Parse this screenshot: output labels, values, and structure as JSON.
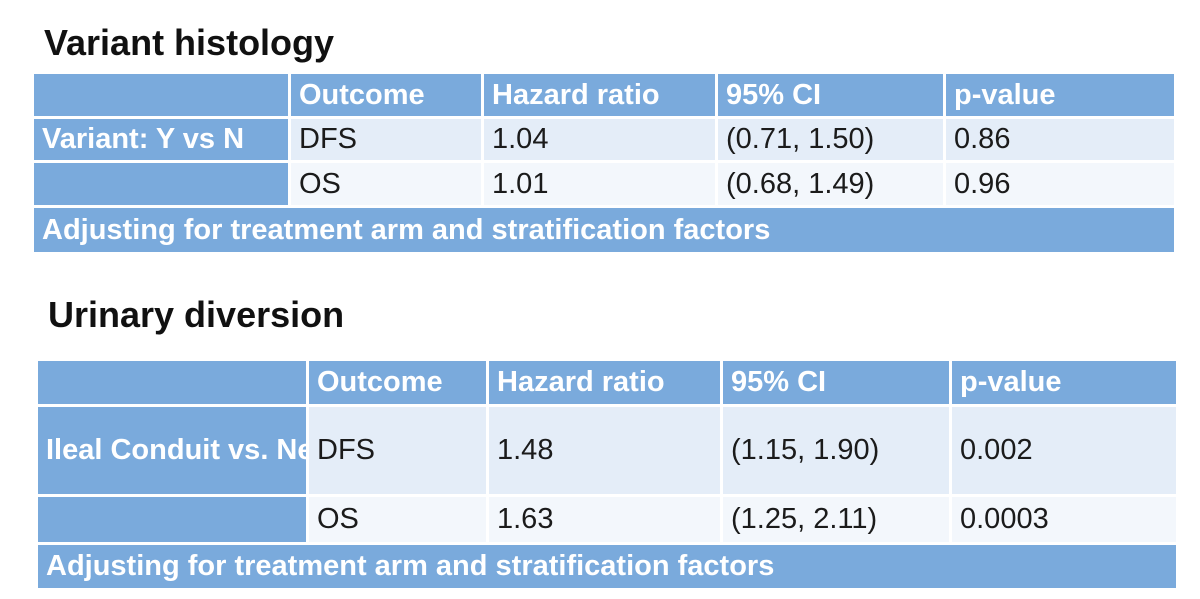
{
  "sections": [
    {
      "title": "Variant histology",
      "columns": [
        "",
        "Outcome",
        "Hazard ratio",
        "95% CI",
        "p-value"
      ],
      "group_label": "Variant:  Y vs N",
      "rows": [
        {
          "outcome": "DFS",
          "hazard_ratio": "1.04",
          "ci": "(0.71, 1.50)",
          "p_value": "0.86"
        },
        {
          "outcome": "OS",
          "hazard_ratio": "1.01",
          "ci": "(0.68, 1.49)",
          "p_value": "0.96"
        }
      ],
      "footer": "Adjusting for treatment arm and stratification factors"
    },
    {
      "title": "Urinary diversion",
      "columns": [
        "",
        "Outcome",
        "Hazard ratio",
        "95% CI",
        "p-value"
      ],
      "group_label": "Ileal Conduit vs. Neobladder",
      "rows": [
        {
          "outcome": "DFS",
          "hazard_ratio": "1.48",
          "ci": "(1.15, 1.90)",
          "p_value": "0.002"
        },
        {
          "outcome": "OS",
          "hazard_ratio": "1.63",
          "ci": "(1.25, 2.11)",
          "p_value": "0.0003"
        }
      ],
      "footer": "Adjusting for treatment arm and stratification factors"
    }
  ],
  "colors": {
    "header_blue": "#7aaadc",
    "row_light": "#e4edf8",
    "row_lighter": "#f3f7fc"
  }
}
